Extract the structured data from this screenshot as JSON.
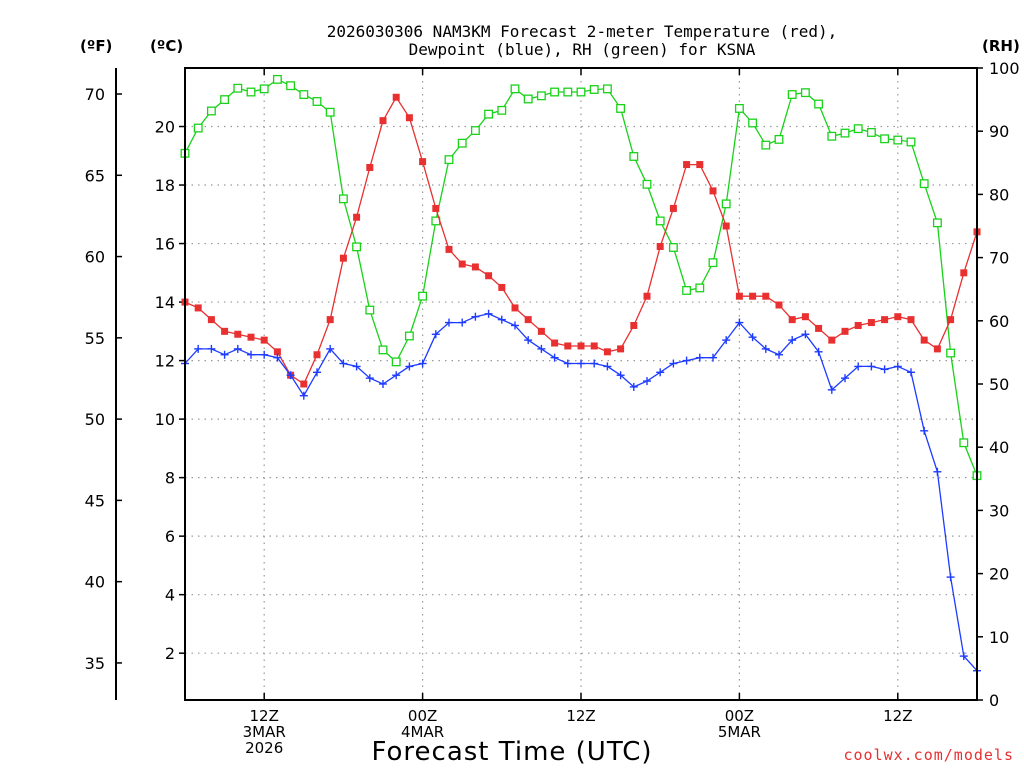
{
  "chart_data": {
    "type": "line",
    "title_line1": "2026030306 NAM3KM Forecast 2-meter Temperature (red),",
    "title_line2": "Dewpoint (blue), RH (green) for KSNA",
    "xlabel": "Forecast Time (UTC)",
    "credit": "coolwx.com/models",
    "unit_f": "(ºF)",
    "unit_c": "(ºC)",
    "unit_rh": "(RH)",
    "x_start_hour": 6,
    "x_end_hour": 66,
    "x_ticks": [
      {
        "hour": 12,
        "line1": "12Z",
        "line2": "3MAR",
        "line3": "2026"
      },
      {
        "hour": 24,
        "line1": "00Z",
        "line2": "4MAR",
        "line3": ""
      },
      {
        "hour": 36,
        "line1": "12Z",
        "line2": "",
        "line3": ""
      },
      {
        "hour": 48,
        "line1": "00Z",
        "line2": "5MAR",
        "line3": ""
      },
      {
        "hour": 60,
        "line1": "12Z",
        "line2": "",
        "line3": ""
      }
    ],
    "celsius_ticks": [
      2,
      4,
      6,
      8,
      10,
      12,
      14,
      16,
      18,
      20
    ],
    "fahrenheit_ticks": [
      35,
      40,
      45,
      50,
      55,
      60,
      65,
      70
    ],
    "rh_ticks": [
      0,
      10,
      20,
      30,
      40,
      50,
      60,
      70,
      80,
      90,
      100
    ],
    "ylim_celsius": [
      0.4,
      22.0
    ],
    "ylim_rh": [
      0,
      100
    ],
    "colors": {
      "temperature": "#e83030",
      "dewpoint": "#1e3cff",
      "rh": "#19d219",
      "grid": "#9a9a9a"
    },
    "series": [
      {
        "name": "Temperature",
        "unit": "C",
        "values": [
          14.0,
          13.8,
          13.4,
          13.0,
          12.9,
          12.8,
          12.7,
          12.3,
          11.5,
          11.2,
          12.2,
          13.4,
          15.5,
          16.9,
          18.6,
          20.2,
          21.0,
          20.3,
          18.8,
          17.2,
          15.8,
          15.3,
          15.2,
          14.9,
          14.5,
          13.8,
          13.4,
          13.0,
          12.6,
          12.5,
          12.5,
          12.5,
          12.3,
          12.4,
          13.2,
          14.2,
          15.9,
          17.2,
          18.7,
          18.7,
          17.8,
          16.6,
          14.2,
          14.2,
          14.2,
          13.9,
          13.4,
          13.5,
          13.1,
          12.7,
          13.0,
          13.2,
          13.3,
          13.4,
          13.5,
          13.4,
          12.7,
          12.4,
          13.4,
          15.0,
          16.4
        ]
      },
      {
        "name": "Dewpoint",
        "unit": "C",
        "values": [
          11.9,
          12.4,
          12.4,
          12.2,
          12.4,
          12.2,
          12.2,
          12.1,
          11.5,
          10.8,
          11.6,
          12.4,
          11.9,
          11.8,
          11.4,
          11.2,
          11.5,
          11.8,
          11.9,
          12.9,
          13.3,
          13.3,
          13.5,
          13.6,
          13.4,
          13.2,
          12.7,
          12.4,
          12.1,
          11.9,
          11.9,
          11.9,
          11.8,
          11.5,
          11.1,
          11.3,
          11.6,
          11.9,
          12.0,
          12.1,
          12.1,
          12.7,
          13.3,
          12.8,
          12.4,
          12.2,
          12.7,
          12.9,
          12.3,
          11.0,
          11.4,
          11.8,
          11.8,
          11.7,
          11.8,
          11.6,
          9.6,
          8.2,
          4.6,
          1.9,
          1.4
        ]
      },
      {
        "name": "RH",
        "unit": "%",
        "values": [
          86.5,
          90.5,
          93.2,
          95.0,
          96.8,
          96.2,
          96.7,
          98.2,
          97.2,
          95.8,
          94.7,
          93.0,
          79.3,
          71.7,
          61.7,
          55.4,
          53.5,
          57.6,
          63.9,
          75.8,
          85.5,
          88.1,
          90.1,
          92.7,
          93.3,
          96.7,
          95.1,
          95.6,
          96.2,
          96.2,
          96.2,
          96.6,
          96.7,
          93.6,
          86.0,
          81.6,
          75.8,
          71.6,
          64.8,
          65.2,
          69.2,
          78.5,
          93.6,
          91.3,
          87.8,
          88.7,
          95.8,
          96.1,
          94.3,
          89.2,
          89.7,
          90.4,
          89.8,
          88.8,
          88.6,
          88.3,
          81.7,
          75.5,
          54.9,
          40.7,
          35.5
        ]
      }
    ]
  }
}
